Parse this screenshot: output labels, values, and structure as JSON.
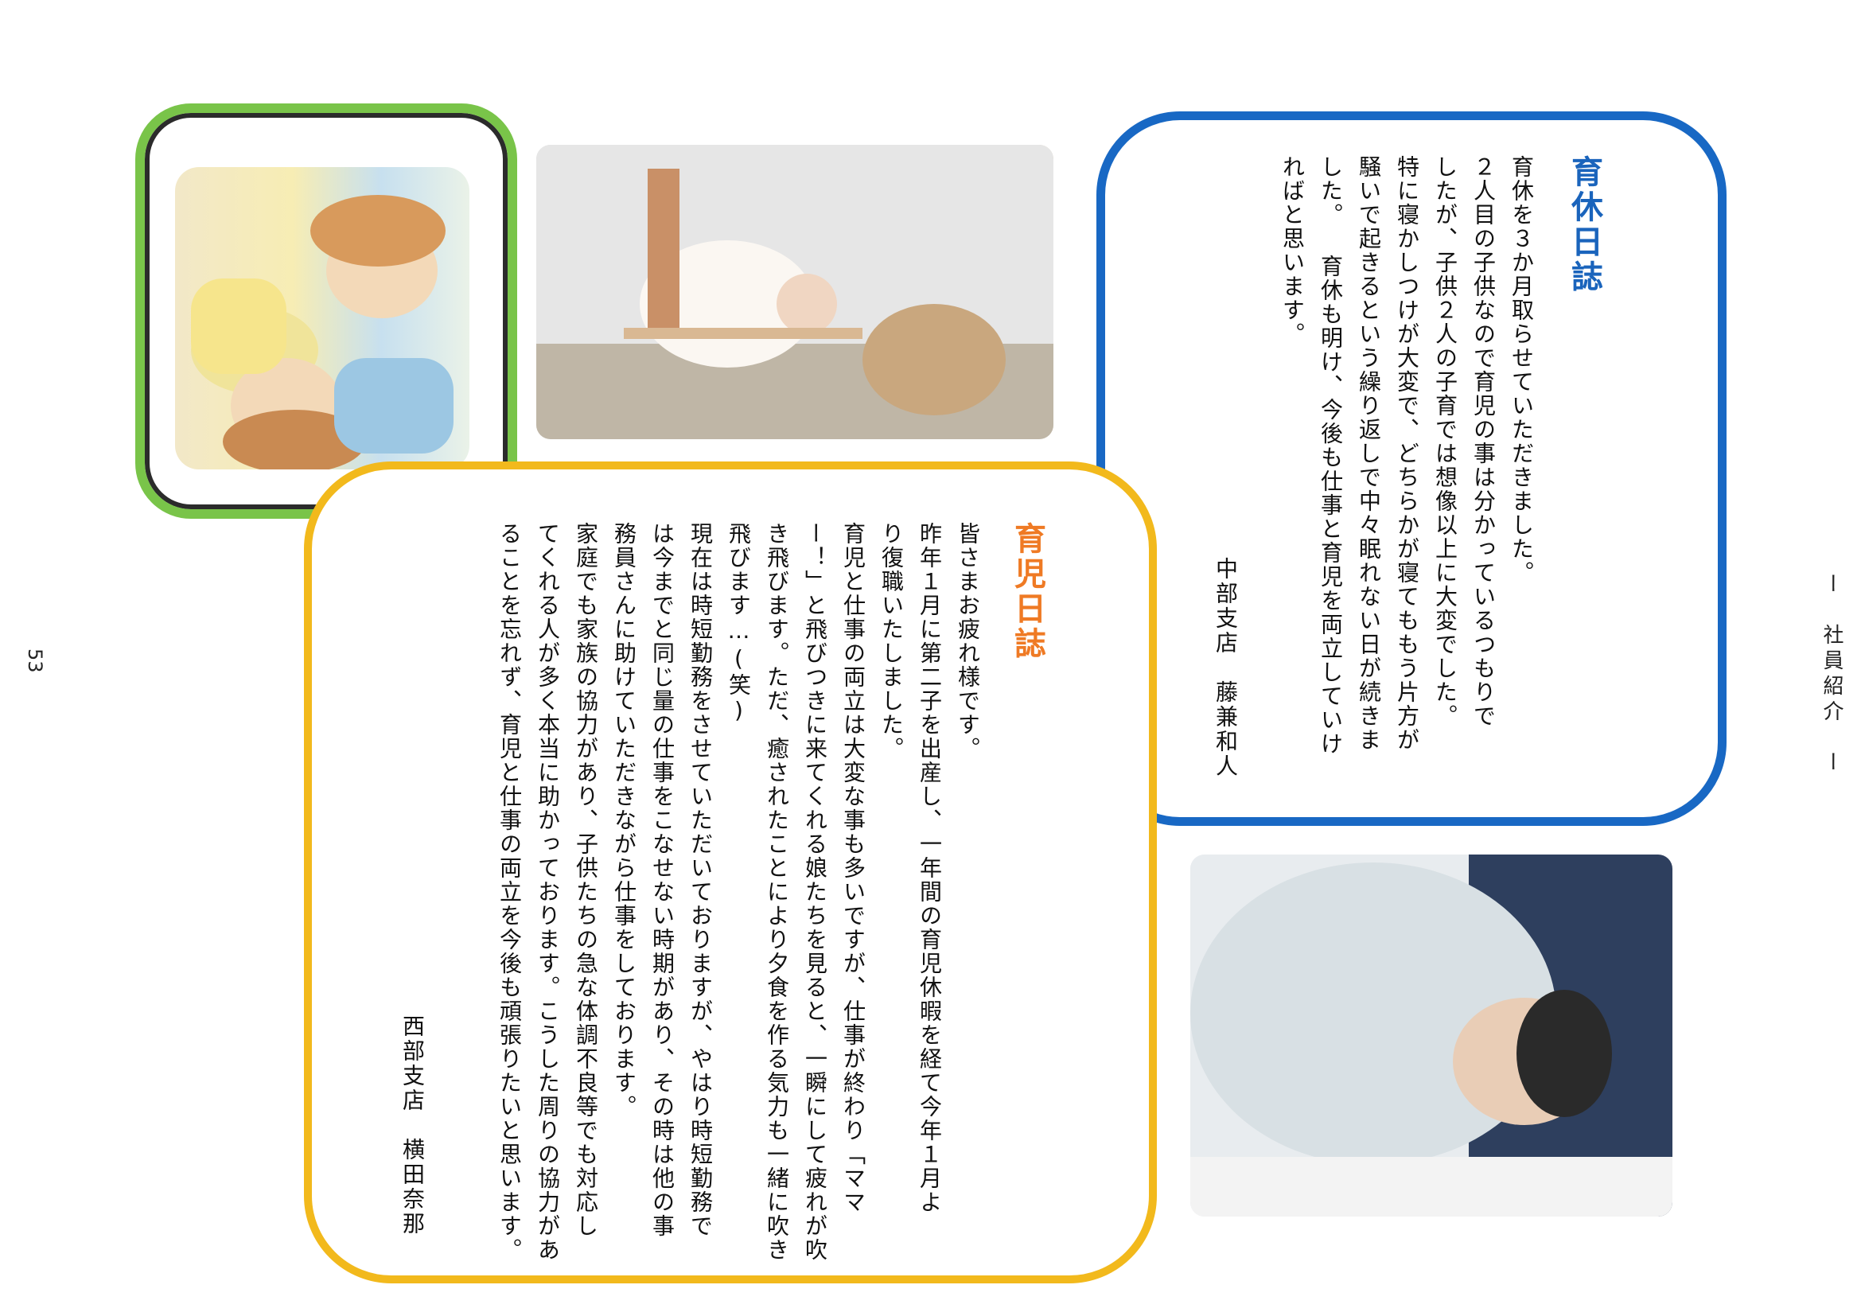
{
  "header": {
    "section_label": "ー　社員紹介　ー"
  },
  "page_number": "53",
  "colors": {
    "blue_frame": "#1868c4",
    "yellow_frame": "#f2b91c",
    "green_frame": "#79c449",
    "blue_title": "#1a64bc",
    "yellow_title": "#ef7a24"
  },
  "blue_article": {
    "title": "育休日誌",
    "lines": [
      "育休を３か月取らせていただきました。",
      "２人目の子供なので育児の事は分かっているつもりで",
      "したが、子供２人の子育では想像以上に大変でした。",
      "特に寝かしつけが大変で、どちらかが寝てももう片方が",
      "騒いで起きるという繰り返しで中々眠れない日が続きま",
      "した。 育休も明け、今後も仕事と育児を両立していけ",
      "ればと思います。"
    ],
    "signature": "中部支店　藤兼和人"
  },
  "yellow_article": {
    "title": "育児日誌",
    "lines": [
      "皆さまお疲れ様です。",
      "昨年１月に第二子を出産し、一年間の育児休暇を経て今年１月よ",
      "り復職いたしました。",
      "育児と仕事の両立は大変な事も多いですが、仕事が終わり「ママ",
      "ー！」と飛びつきに来てくれる娘たちを見ると、一瞬にして疲れが吹",
      "き飛びます。ただ、癒されたことにより夕食を作る気力も一緒に吹き",
      "飛びます…(笑)",
      "現在は時短勤務をさせていただいておりますが、やはり時短勤務で",
      "は今までと同じ量の仕事をこなせない時期があり、その時は他の事",
      "務員さんに助けていただきながら仕事をしております。",
      "家庭でも家族の協力があり、子供たちの急な体調不良等でも対応し",
      "てくれる人が多く本当に助かっております。こうした周りの協力があ",
      "ることを忘れず、育児と仕事の両立を今後も頑張りたいと思います。"
    ],
    "signature": "西部支店　横田奈那"
  }
}
